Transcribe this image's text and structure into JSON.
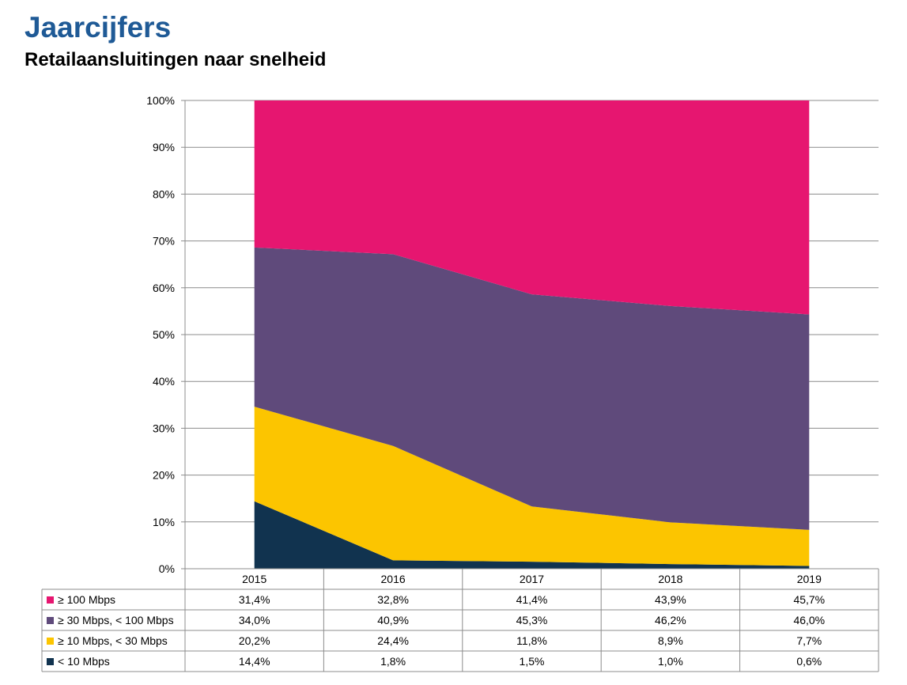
{
  "header": {
    "title": "Jaarcijfers",
    "subtitle": "Retailaansluitingen naar snelheid"
  },
  "chart_data": {
    "type": "area",
    "stacked": "percent",
    "categories": [
      "2015",
      "2016",
      "2017",
      "2018",
      "2019"
    ],
    "series": [
      {
        "name": "< 10 Mbps",
        "color": "#11334f",
        "values": [
          14.4,
          1.8,
          1.5,
          1.0,
          0.6
        ],
        "labels": [
          "14,4%",
          "1,8%",
          "1,5%",
          "1,0%",
          "0,6%"
        ]
      },
      {
        "name": "≥ 10 Mbps, < 30 Mbps",
        "color": "#fcc500",
        "values": [
          20.2,
          24.4,
          11.8,
          8.9,
          7.7
        ],
        "labels": [
          "20,2%",
          "24,4%",
          "11,8%",
          "8,9%",
          "7,7%"
        ]
      },
      {
        "name": "≥ 30 Mbps, < 100 Mbps",
        "color": "#5f4a7b",
        "values": [
          34.0,
          40.9,
          45.3,
          46.2,
          46.0
        ],
        "labels": [
          "34,0%",
          "40,9%",
          "45,3%",
          "46,2%",
          "46,0%"
        ]
      },
      {
        "name": "≥ 100 Mbps",
        "color": "#e61670",
        "values": [
          31.4,
          32.8,
          41.4,
          43.9,
          45.7
        ],
        "labels": [
          "31,4%",
          "32,8%",
          "41,4%",
          "43,9%",
          "45,7%"
        ]
      }
    ],
    "table_order": [
      "≥ 100 Mbps",
      "≥ 30 Mbps, < 100 Mbps",
      "≥ 10 Mbps, < 30 Mbps",
      "< 10 Mbps"
    ],
    "ylim": [
      0,
      100
    ],
    "yticks": [
      "0%",
      "10%",
      "20%",
      "30%",
      "40%",
      "50%",
      "60%",
      "70%",
      "80%",
      "90%",
      "100%"
    ],
    "grid": true,
    "legend": "data-table"
  }
}
